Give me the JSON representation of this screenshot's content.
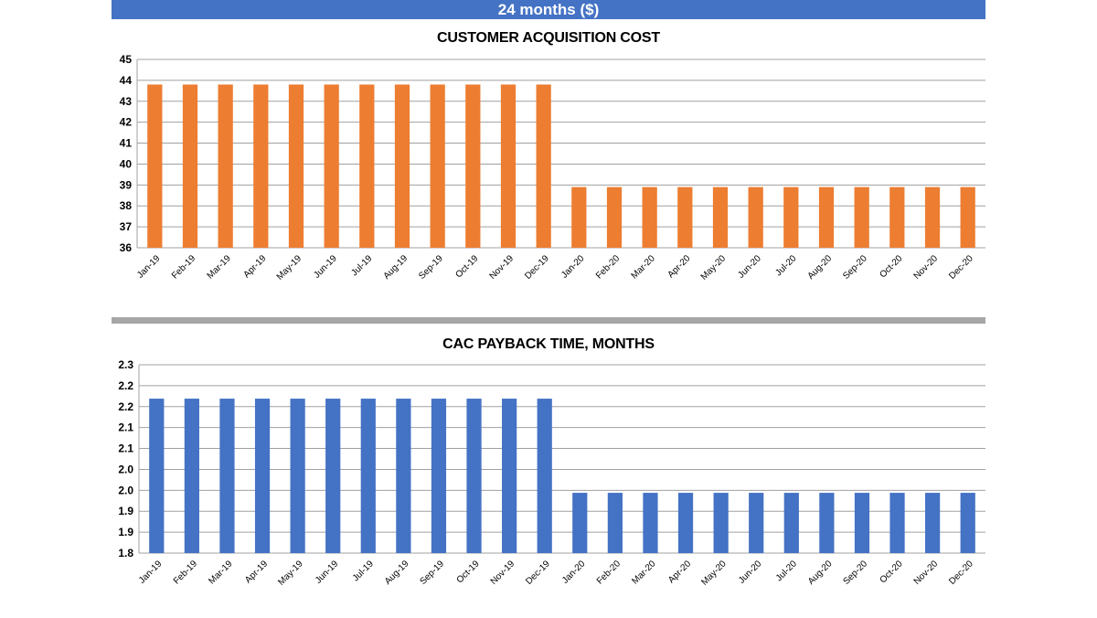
{
  "banner": {
    "title": "24 months ($)"
  },
  "colors": {
    "banner": "#4472c4",
    "separator": "#a6a6a6",
    "grid": "#a0a0a0"
  },
  "chart_data": [
    {
      "type": "bar",
      "title": "CUSTOMER ACQUISITION COST",
      "xlabel": "",
      "ylabel": "",
      "categories": [
        "Jan-19",
        "Feb-19",
        "Mar-19",
        "Apr-19",
        "May-19",
        "Jun-19",
        "Jul-19",
        "Aug-19",
        "Sep-19",
        "Oct-19",
        "Nov-19",
        "Dec-19",
        "Jan-20",
        "Feb-20",
        "Mar-20",
        "Apr-20",
        "May-20",
        "Jun-20",
        "Jul-20",
        "Aug-20",
        "Sep-20",
        "Oct-20",
        "Nov-20",
        "Dec-20"
      ],
      "series": [
        {
          "values": [
            43.8,
            43.8,
            43.8,
            43.8,
            43.8,
            43.8,
            43.8,
            43.8,
            43.8,
            43.8,
            43.8,
            43.8,
            38.9,
            38.9,
            38.9,
            38.9,
            38.9,
            38.9,
            38.9,
            38.9,
            38.9,
            38.9,
            38.9,
            38.9
          ],
          "color": "#ed7d31"
        }
      ],
      "ylim": [
        36,
        45
      ],
      "yticks": [
        "36",
        "37",
        "38",
        "39",
        "40",
        "41",
        "42",
        "43",
        "44",
        "45"
      ],
      "grid": true,
      "legend": "none"
    },
    {
      "type": "bar",
      "title": "CAC PAYBACK TIME, MONTHS",
      "xlabel": "",
      "ylabel": "",
      "categories": [
        "Jan-19",
        "Feb-19",
        "Mar-19",
        "Apr-19",
        "May-19",
        "Jun-19",
        "Jul-19",
        "Aug-19",
        "Sep-19",
        "Oct-19",
        "Nov-19",
        "Dec-19",
        "Jan-20",
        "Feb-20",
        "Mar-20",
        "Apr-20",
        "May-20",
        "Jun-20",
        "Jul-20",
        "Aug-20",
        "Sep-20",
        "Oct-20",
        "Nov-20",
        "Dec-20"
      ],
      "series": [
        {
          "values": [
            2.21,
            2.21,
            2.21,
            2.21,
            2.21,
            2.21,
            2.21,
            2.21,
            2.21,
            2.21,
            2.21,
            2.21,
            1.96,
            1.96,
            1.96,
            1.96,
            1.96,
            1.96,
            1.96,
            1.96,
            1.96,
            1.96,
            1.96,
            1.96
          ],
          "color": "#4472c4"
        }
      ],
      "ylim": [
        1.8,
        2.3
      ],
      "yticks": [
        "1.8",
        "1.9",
        "1.9",
        "2.0",
        "2.0",
        "2.1",
        "2.1",
        "2.2",
        "2.2",
        "2.3"
      ],
      "grid": true,
      "legend": "none"
    }
  ]
}
